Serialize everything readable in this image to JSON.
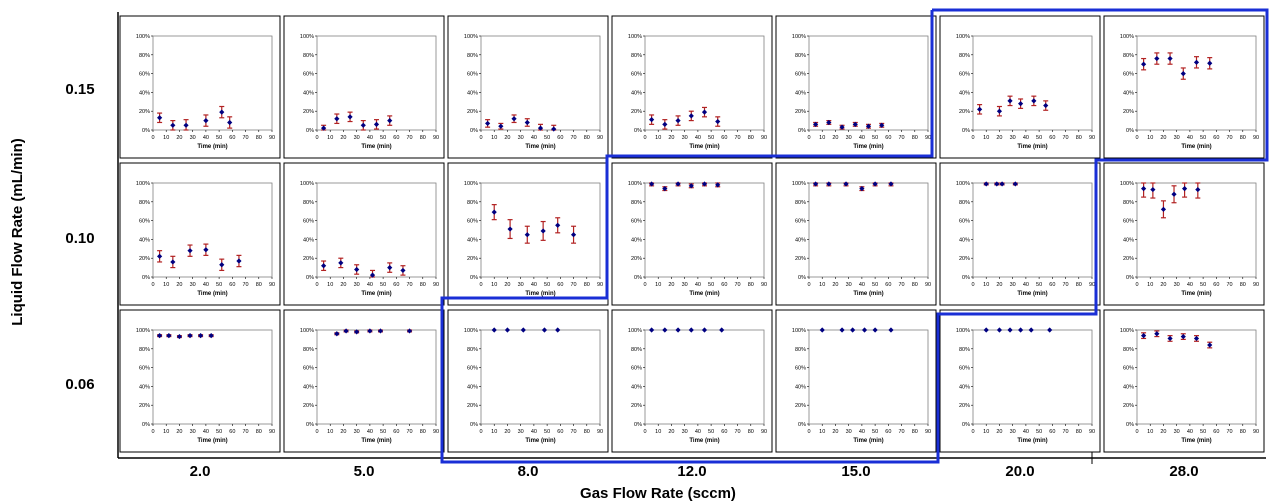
{
  "figure": {
    "ylabel": "Liquid Flow Rate (mL/min)",
    "xlabel": "Gas Flow Rate (sccm)",
    "row_labels": [
      "0.15",
      "0.10",
      "0.06"
    ],
    "col_labels": [
      "2.0",
      "5.0",
      "8.0",
      "12.0",
      "15.0",
      "20.0",
      "28.0"
    ],
    "marker_color": "#000080",
    "errorbar_color": "#b22222",
    "highlight_color": "#1a2fd6"
  },
  "chart_data": {
    "type": "scatter",
    "panel_xlabel": "Time (min)",
    "x_ticks": [
      "0",
      "10",
      "20",
      "30",
      "40",
      "50",
      "60",
      "70",
      "80",
      "90"
    ],
    "y_ticks": [
      "0%",
      "20%",
      "40%",
      "60%",
      "80%",
      "100%"
    ],
    "xlim": [
      0,
      90
    ],
    "ylim": [
      0,
      100
    ],
    "panels": [
      {
        "liquid": "0.15",
        "gas": "2.0",
        "points": [
          [
            5,
            13,
            5
          ],
          [
            15,
            5,
            5
          ],
          [
            25,
            5,
            6
          ],
          [
            40,
            10,
            6
          ],
          [
            52,
            19,
            6
          ],
          [
            58,
            8,
            6
          ]
        ]
      },
      {
        "liquid": "0.15",
        "gas": "5.0",
        "points": [
          [
            5,
            2,
            3
          ],
          [
            15,
            12,
            5
          ],
          [
            25,
            14,
            5
          ],
          [
            35,
            5,
            5
          ],
          [
            45,
            6,
            5
          ],
          [
            55,
            10,
            5
          ]
        ]
      },
      {
        "liquid": "0.15",
        "gas": "8.0",
        "points": [
          [
            5,
            7,
            4
          ],
          [
            15,
            4,
            3
          ],
          [
            25,
            12,
            4
          ],
          [
            35,
            8,
            4
          ],
          [
            45,
            2,
            4
          ],
          [
            55,
            1,
            4
          ]
        ]
      },
      {
        "liquid": "0.15",
        "gas": "12.0",
        "points": [
          [
            5,
            11,
            5
          ],
          [
            15,
            6,
            5
          ],
          [
            25,
            10,
            5
          ],
          [
            35,
            15,
            5
          ],
          [
            45,
            19,
            5
          ],
          [
            55,
            9,
            5
          ]
        ]
      },
      {
        "liquid": "0.15",
        "gas": "15.0",
        "points": [
          [
            5,
            6,
            2
          ],
          [
            15,
            8,
            2
          ],
          [
            25,
            3,
            2
          ],
          [
            35,
            6,
            2
          ],
          [
            45,
            4,
            2
          ],
          [
            55,
            5,
            2
          ]
        ]
      },
      {
        "liquid": "0.15",
        "gas": "20.0",
        "points": [
          [
            5,
            22,
            5
          ],
          [
            20,
            20,
            5
          ],
          [
            28,
            31,
            5
          ],
          [
            36,
            28,
            5
          ],
          [
            46,
            31,
            5
          ],
          [
            55,
            26,
            5
          ]
        ]
      },
      {
        "liquid": "0.15",
        "gas": "28.0",
        "points": [
          [
            5,
            70,
            6
          ],
          [
            15,
            76,
            6
          ],
          [
            25,
            76,
            6
          ],
          [
            35,
            60,
            6
          ],
          [
            45,
            72,
            6
          ],
          [
            55,
            71,
            6
          ]
        ]
      },
      {
        "liquid": "0.10",
        "gas": "2.0",
        "points": [
          [
            5,
            22,
            6
          ],
          [
            15,
            16,
            6
          ],
          [
            28,
            28,
            6
          ],
          [
            40,
            29,
            6
          ],
          [
            52,
            13,
            6
          ],
          [
            65,
            17,
            6
          ]
        ]
      },
      {
        "liquid": "0.10",
        "gas": "5.0",
        "points": [
          [
            5,
            12,
            5
          ],
          [
            18,
            15,
            5
          ],
          [
            30,
            8,
            5
          ],
          [
            42,
            2,
            5
          ],
          [
            55,
            10,
            5
          ],
          [
            65,
            7,
            5
          ]
        ]
      },
      {
        "liquid": "0.10",
        "gas": "8.0",
        "points": [
          [
            10,
            69,
            8
          ],
          [
            22,
            51,
            10
          ],
          [
            35,
            45,
            9
          ],
          [
            47,
            49,
            10
          ],
          [
            58,
            55,
            8
          ],
          [
            70,
            45,
            9
          ]
        ]
      },
      {
        "liquid": "0.10",
        "gas": "12.0",
        "points": [
          [
            5,
            99,
            2
          ],
          [
            15,
            94,
            2
          ],
          [
            25,
            99,
            2
          ],
          [
            35,
            97,
            2
          ],
          [
            45,
            99,
            2
          ],
          [
            55,
            98,
            2
          ]
        ]
      },
      {
        "liquid": "0.10",
        "gas": "15.0",
        "points": [
          [
            5,
            99,
            2
          ],
          [
            15,
            99,
            2
          ],
          [
            28,
            99,
            2
          ],
          [
            40,
            94,
            2
          ],
          [
            50,
            99,
            2
          ],
          [
            62,
            99,
            2
          ]
        ]
      },
      {
        "liquid": "0.10",
        "gas": "20.0",
        "points": [
          [
            10,
            99,
            1
          ],
          [
            18,
            99,
            1
          ],
          [
            22,
            99,
            1
          ],
          [
            32,
            99,
            1
          ]
        ]
      },
      {
        "liquid": "0.10",
        "gas": "28.0",
        "points": [
          [
            5,
            94,
            9
          ],
          [
            12,
            93,
            9
          ],
          [
            20,
            72,
            9
          ],
          [
            28,
            88,
            9
          ],
          [
            36,
            94,
            9
          ],
          [
            46,
            93,
            9
          ]
        ]
      },
      {
        "liquid": "0.06",
        "gas": "2.0",
        "points": [
          [
            5,
            94,
            1
          ],
          [
            12,
            94,
            1
          ],
          [
            20,
            93,
            1
          ],
          [
            28,
            94,
            1
          ],
          [
            36,
            94,
            1
          ],
          [
            44,
            94,
            1
          ]
        ]
      },
      {
        "liquid": "0.06",
        "gas": "5.0",
        "points": [
          [
            15,
            96,
            1
          ],
          [
            22,
            99,
            1
          ],
          [
            30,
            98,
            1
          ],
          [
            40,
            99,
            1
          ],
          [
            48,
            99,
            1
          ],
          [
            70,
            99,
            1
          ]
        ]
      },
      {
        "liquid": "0.06",
        "gas": "8.0",
        "points": [
          [
            10,
            100,
            0
          ],
          [
            20,
            100,
            0
          ],
          [
            32,
            100,
            0
          ],
          [
            48,
            100,
            0
          ],
          [
            58,
            100,
            0
          ]
        ]
      },
      {
        "liquid": "0.06",
        "gas": "12.0",
        "points": [
          [
            5,
            100,
            0
          ],
          [
            15,
            100,
            0
          ],
          [
            25,
            100,
            0
          ],
          [
            35,
            100,
            0
          ],
          [
            45,
            100,
            0
          ],
          [
            58,
            100,
            0
          ]
        ]
      },
      {
        "liquid": "0.06",
        "gas": "15.0",
        "points": [
          [
            10,
            100,
            0
          ],
          [
            25,
            100,
            0
          ],
          [
            33,
            100,
            0
          ],
          [
            42,
            100,
            0
          ],
          [
            50,
            100,
            0
          ],
          [
            62,
            100,
            0
          ]
        ]
      },
      {
        "liquid": "0.06",
        "gas": "20.0",
        "points": [
          [
            10,
            100,
            0
          ],
          [
            20,
            100,
            0
          ],
          [
            28,
            100,
            0
          ],
          [
            36,
            100,
            0
          ],
          [
            44,
            100,
            0
          ],
          [
            58,
            100,
            0
          ]
        ]
      },
      {
        "liquid": "0.06",
        "gas": "28.0",
        "points": [
          [
            5,
            94,
            3
          ],
          [
            15,
            96,
            3
          ],
          [
            25,
            91,
            3
          ],
          [
            35,
            93,
            3
          ],
          [
            45,
            91,
            3
          ],
          [
            55,
            84,
            3
          ]
        ]
      }
    ]
  }
}
